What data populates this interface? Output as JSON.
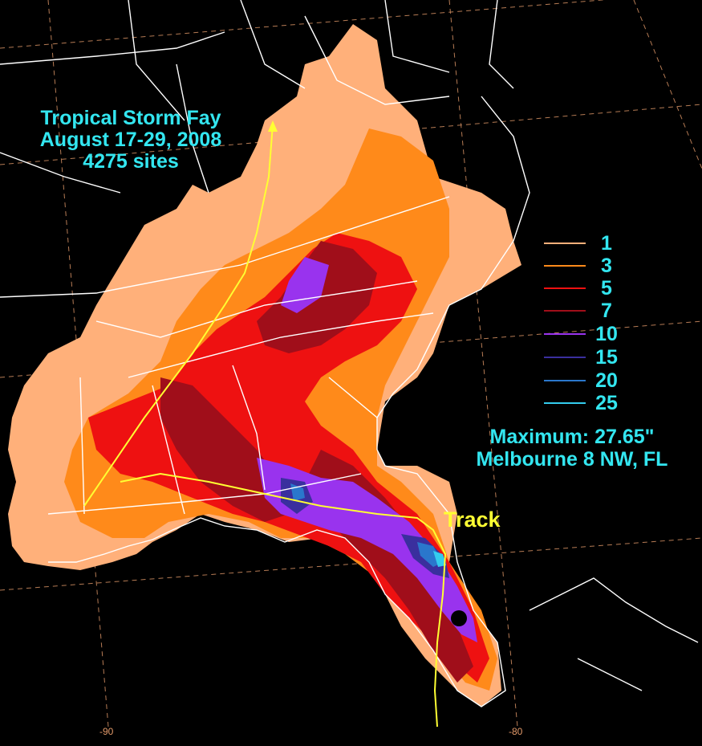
{
  "title": {
    "line1": "Tropical Storm Fay",
    "line2": "August 17-29, 2008",
    "line3": "4275 sites"
  },
  "legend": [
    {
      "label": "1",
      "color": "#ffb07a"
    },
    {
      "label": "3",
      "color": "#ff8a1a"
    },
    {
      "label": "5",
      "color": "#ee1111"
    },
    {
      "label": "7",
      "color": "#a00e1a"
    },
    {
      "label": "10",
      "color": "#9933ee"
    },
    {
      "label": "15",
      "color": "#3a2f9e"
    },
    {
      "label": "20",
      "color": "#2a77cc"
    },
    {
      "label": "25",
      "color": "#33ccee"
    }
  ],
  "maximum": {
    "line1": "Maximum: 27.65\"",
    "line2": "Melbourne 8 NW, FL"
  },
  "track_label": "Track",
  "longitude_labels": [
    "-90",
    "-80"
  ],
  "colors": {
    "background": "#000000",
    "text": "#33e6f0",
    "track": "#ffff33",
    "borders": "#ffffff",
    "grid": "#e39a6a"
  }
}
